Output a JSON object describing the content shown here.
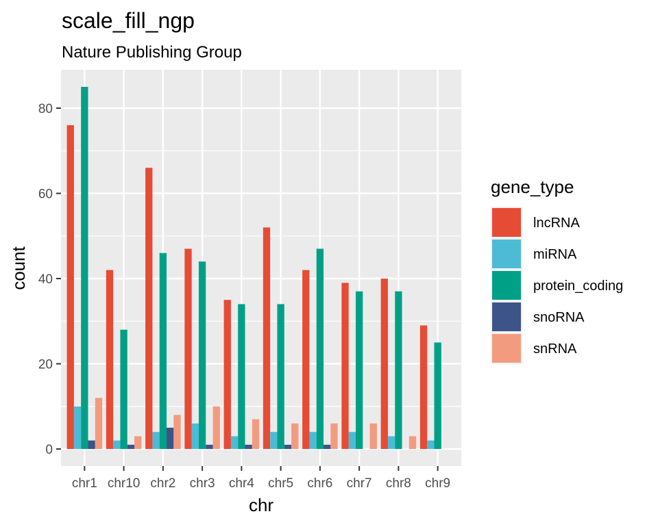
{
  "chart_data": {
    "type": "bar",
    "title": "scale_fill_ngp",
    "subtitle": "Nature Publishing Group",
    "xlabel": "chr",
    "ylabel": "count",
    "categories": [
      "chr1",
      "chr10",
      "chr2",
      "chr3",
      "chr4",
      "chr5",
      "chr6",
      "chr7",
      "chr8",
      "chr9"
    ],
    "ylim": [
      -4,
      89
    ],
    "yticks": [
      0,
      20,
      40,
      60,
      80
    ],
    "grid": true,
    "legend": {
      "title": "gene_type",
      "placement": "right",
      "entries": [
        "lncRNA",
        "miRNA",
        "protein_coding",
        "snoRNA",
        "snRNA"
      ]
    },
    "series": [
      {
        "name": "lncRNA",
        "color": "#E64B35",
        "values": [
          76,
          42,
          66,
          47,
          35,
          52,
          42,
          39,
          40,
          29
        ]
      },
      {
        "name": "miRNA",
        "color": "#4DBBD5",
        "values": [
          10,
          2,
          4,
          6,
          3,
          4,
          4,
          4,
          3,
          2
        ]
      },
      {
        "name": "protein_coding",
        "color": "#00A087",
        "values": [
          85,
          28,
          46,
          44,
          34,
          34,
          47,
          37,
          37,
          25
        ]
      },
      {
        "name": "snoRNA",
        "color": "#3C5488",
        "values": [
          2,
          1,
          5,
          1,
          1,
          1,
          1,
          null,
          null,
          null
        ]
      },
      {
        "name": "snRNA",
        "color": "#F39B7F",
        "values": [
          12,
          3,
          8,
          10,
          7,
          6,
          6,
          6,
          3,
          null
        ]
      }
    ]
  }
}
